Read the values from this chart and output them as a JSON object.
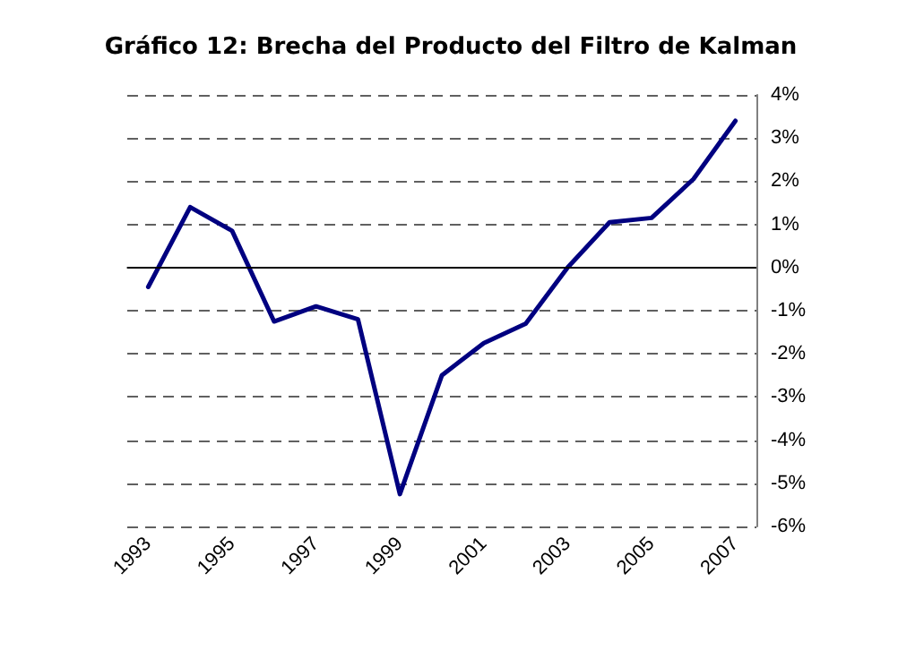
{
  "chart_data": {
    "type": "line",
    "title": "Gráfico 12: Brecha del Producto del Filtro de Kalman",
    "categories": [
      "1993",
      null,
      "1995",
      null,
      "1997",
      null,
      "1999",
      null,
      "2001",
      null,
      "2003",
      null,
      "2005",
      null,
      "2007"
    ],
    "series": [
      {
        "color": "#000080",
        "values": [
          -0.45,
          1.4,
          0.85,
          -1.25,
          -0.9,
          -1.2,
          -5.25,
          -2.5,
          -1.75,
          -1.3,
          0.0,
          1.05,
          1.15,
          2.05,
          3.4
        ]
      }
    ],
    "ylim": [
      -6,
      4
    ],
    "yticks": [
      {
        "value": -6,
        "label": "-6%"
      },
      {
        "value": -5,
        "label": "-5%"
      },
      {
        "value": -4,
        "label": "-4%"
      },
      {
        "value": -3,
        "label": "-3%"
      },
      {
        "value": -2,
        "label": "-2%"
      },
      {
        "value": -1,
        "label": "-1%"
      },
      {
        "value": 0,
        "label": "0%"
      },
      {
        "value": 1,
        "label": "1%"
      },
      {
        "value": 2,
        "label": "2%"
      },
      {
        "value": 3,
        "label": "3%"
      },
      {
        "value": 4,
        "label": "4%"
      }
    ],
    "grid": "y",
    "line_style": "solid",
    "marker": "none",
    "ref_lines": [
      {
        "axis": "y",
        "value": 0,
        "color": "#000000",
        "line_style": "solid"
      }
    ]
  }
}
